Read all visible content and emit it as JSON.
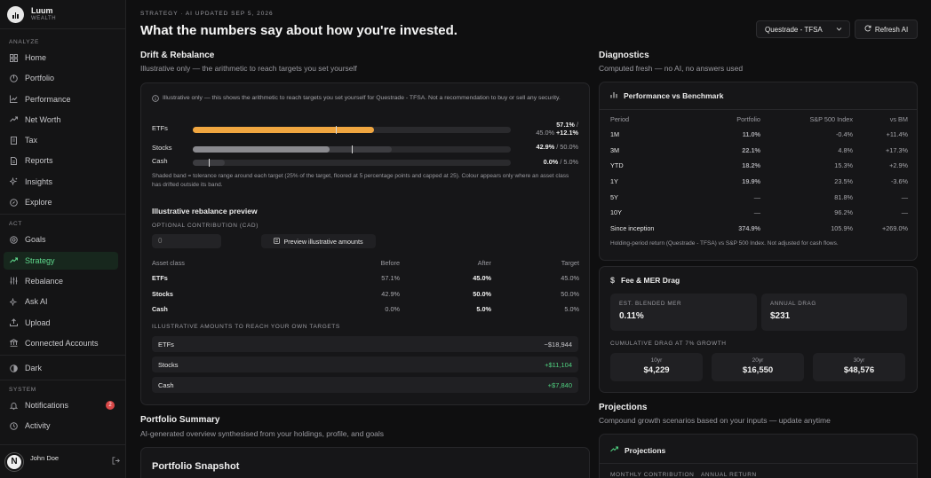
{
  "brand": {
    "name": "Luum",
    "sub": "WEALTH"
  },
  "sidebar": {
    "sections": {
      "analyze": "ANALYZE",
      "act": "ACT",
      "system": "SYSTEM"
    },
    "analyze": [
      {
        "label": "Home"
      },
      {
        "label": "Portfolio"
      },
      {
        "label": "Performance"
      },
      {
        "label": "Net Worth"
      },
      {
        "label": "Tax"
      },
      {
        "label": "Reports"
      },
      {
        "label": "Insights"
      },
      {
        "label": "Explore"
      }
    ],
    "act": [
      {
        "label": "Goals"
      },
      {
        "label": "Strategy"
      },
      {
        "label": "Rebalance"
      },
      {
        "label": "Ask AI"
      },
      {
        "label": "Upload"
      },
      {
        "label": "Connected Accounts"
      }
    ],
    "theme": {
      "label": "Dark"
    },
    "system": [
      {
        "label": "Notifications",
        "badge": "2"
      },
      {
        "label": "Activity"
      }
    ],
    "user": {
      "name": "John Doe",
      "initial": "N"
    }
  },
  "header": {
    "eyebrow": "STRATEGY · AI UPDATED SEP 5, 2026",
    "title": "What the numbers say about how you're invested.",
    "account": "Questrade - TFSA",
    "refresh": "Refresh AI"
  },
  "drift": {
    "title": "Drift & Rebalance",
    "subtitle": "Illustrative only — the arithmetic to reach targets you set yourself",
    "note": "Illustrative only — this shows the arithmetic to reach targets you set yourself for Questrade - TFSA. Not a recommendation to buy or sell any security.",
    "bars": [
      {
        "label": "ETFs",
        "current": "57.1%",
        "target": "/ 45.0%",
        "delta": "+12.1%",
        "pct": 57.1,
        "target_pct": 45.0,
        "band": [
          33.75,
          56.25
        ],
        "color": "#f0a640"
      },
      {
        "label": "Stocks",
        "current": "42.9%",
        "target": "/ 50.0%",
        "delta": "",
        "pct": 42.9,
        "target_pct": 50.0,
        "band": [
          37.5,
          62.5
        ],
        "color": "#8a8a8f"
      },
      {
        "label": "Cash",
        "current": "0.0%",
        "target": "/ 5.0%",
        "delta": "",
        "pct": 0.0,
        "target_pct": 5.0,
        "band": [
          0,
          10
        ],
        "color": "#8a8a8f"
      }
    ],
    "caption": "Shaded band = tolerance range around each target (25% of the target, floored at 5 percentage points and capped at 25). Colour appears only where an asset class has drifted outside its band.",
    "preview_title": "Illustrative rebalance preview",
    "contribution_label": "OPTIONAL CONTRIBUTION (CAD)",
    "contribution_placeholder": "0",
    "preview_button": "Preview illustrative amounts",
    "table": {
      "headers": [
        "Asset class",
        "Before",
        "After",
        "Target"
      ],
      "rows": [
        [
          "ETFs",
          "57.1%",
          "45.0%",
          "45.0%"
        ],
        [
          "Stocks",
          "42.9%",
          "50.0%",
          "50.0%"
        ],
        [
          "Cash",
          "0.0%",
          "5.0%",
          "5.0%"
        ]
      ]
    },
    "amounts_label": "ILLUSTRATIVE AMOUNTS TO REACH YOUR OWN TARGETS",
    "amounts": [
      {
        "label": "ETFs",
        "value": "−$18,944",
        "tone": "muted"
      },
      {
        "label": "Stocks",
        "value": "+$11,104",
        "tone": "green"
      },
      {
        "label": "Cash",
        "value": "+$7,840",
        "tone": "green"
      }
    ]
  },
  "summary": {
    "title": "Portfolio Summary",
    "subtitle": "AI-generated overview synthesised from your holdings, profile, and goals",
    "card_title": "Portfolio Snapshot"
  },
  "diagnostics": {
    "title": "Diagnostics",
    "subtitle": "Computed fresh — no AI, no answers used",
    "perf": {
      "title": "Performance vs Benchmark",
      "headers": [
        "Period",
        "Portfolio",
        "S&P 500 Index",
        "vs BM"
      ],
      "rows": [
        {
          "period": "1M",
          "portfolio": "11.0%",
          "bench": "-0.4%",
          "vs": "+11.4%",
          "ptone": "green",
          "vtone": "green"
        },
        {
          "period": "3M",
          "portfolio": "22.1%",
          "bench": "4.8%",
          "vs": "+17.3%",
          "ptone": "green",
          "vtone": "green"
        },
        {
          "period": "YTD",
          "portfolio": "18.2%",
          "bench": "15.3%",
          "vs": "+2.9%",
          "ptone": "green",
          "vtone": "green"
        },
        {
          "period": "1Y",
          "portfolio": "19.9%",
          "bench": "23.5%",
          "vs": "-3.6%",
          "ptone": "green",
          "vtone": "red"
        },
        {
          "period": "5Y",
          "portfolio": "—",
          "bench": "81.8%",
          "vs": "—",
          "ptone": "muted",
          "vtone": "muted"
        },
        {
          "period": "10Y",
          "portfolio": "—",
          "bench": "96.2%",
          "vs": "—",
          "ptone": "muted",
          "vtone": "muted"
        },
        {
          "period": "Since inception",
          "portfolio": "374.9%",
          "bench": "105.9%",
          "vs": "+269.0%",
          "ptone": "green",
          "vtone": "green"
        }
      ],
      "footnote": "Holding-period return (Questrade - TFSA) vs S&P 500 Index. Not adjusted for cash flows."
    },
    "fees": {
      "title": "Fee & MER Drag",
      "blended_label": "EST. BLENDED MER",
      "blended_value": "0.11%",
      "annual_label": "ANNUAL DRAG",
      "annual_value": "$231",
      "cumulative_label": "CUMULATIVE DRAG AT 7% GROWTH",
      "drag": [
        {
          "label": "10yr",
          "value": "$4,229"
        },
        {
          "label": "20yr",
          "value": "$16,550"
        },
        {
          "label": "30yr",
          "value": "$48,576"
        }
      ]
    }
  },
  "projections": {
    "title": "Projections",
    "subtitle": "Compound growth scenarios based on your inputs — update anytime",
    "card_title": "Projections",
    "monthly_label": "MONTHLY CONTRIBUTION",
    "return_label": "ANNUAL RETURN"
  },
  "colors": {
    "accent_green": "#4fcf7f",
    "drift_amber": "#f0a640",
    "negative": "#e06060",
    "badge": "#d94848"
  }
}
